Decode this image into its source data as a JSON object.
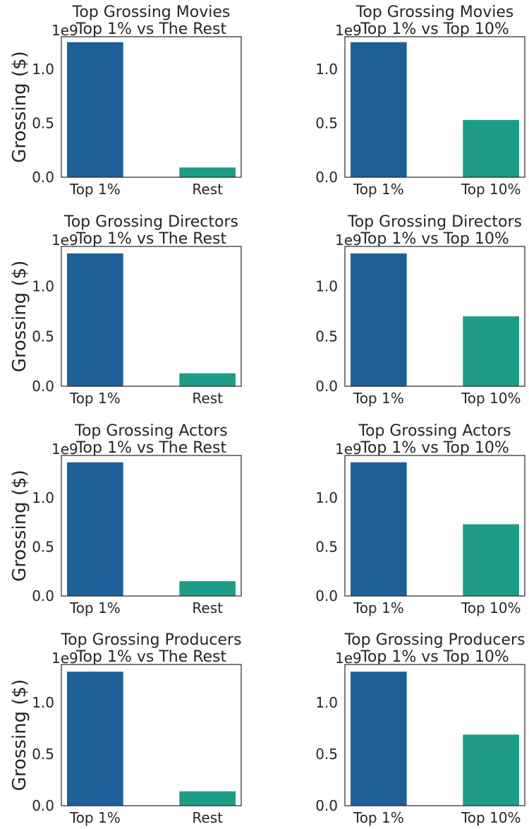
{
  "colors": {
    "top1": "#1f5f99",
    "other": "#1e9c87"
  },
  "ylabel": "Grossing ($)",
  "offset_label": "1e9",
  "chart_data": [
    {
      "type": "bar",
      "title": "Top Grossing Movies",
      "subtitle": "Top 1% vs The Rest",
      "categories": [
        "Top 1%",
        "Rest"
      ],
      "values": [
        1.25,
        0.09
      ],
      "ylim": [
        0,
        1.3
      ],
      "yticks": [
        "0.0",
        "0.5",
        "1.0"
      ],
      "grid": false,
      "scale": "1e9"
    },
    {
      "type": "bar",
      "title": "Top Grossing Movies",
      "subtitle": "Top 1% vs Top 10%",
      "categories": [
        "Top 1%",
        "Top 10%"
      ],
      "values": [
        1.25,
        0.53
      ],
      "ylim": [
        0,
        1.3
      ],
      "yticks": [
        "0.0",
        "0.5",
        "1.0"
      ],
      "grid": false,
      "scale": "1e9"
    },
    {
      "type": "bar",
      "title": "Top Grossing Directors",
      "subtitle": "Top 1% vs The Rest",
      "categories": [
        "Top 1%",
        "Rest"
      ],
      "values": [
        1.33,
        0.13
      ],
      "ylim": [
        0,
        1.4
      ],
      "yticks": [
        "0.0",
        "0.5",
        "1.0"
      ],
      "grid": false,
      "scale": "1e9"
    },
    {
      "type": "bar",
      "title": "Top Grossing Directors",
      "subtitle": "Top 1% vs Top 10%",
      "categories": [
        "Top 1%",
        "Top 10%"
      ],
      "values": [
        1.33,
        0.7
      ],
      "ylim": [
        0,
        1.4
      ],
      "yticks": [
        "0.0",
        "0.5",
        "1.0"
      ],
      "grid": false,
      "scale": "1e9"
    },
    {
      "type": "bar",
      "title": "Top Grossing Actors",
      "subtitle": "Top 1% vs The Rest",
      "categories": [
        "Top 1%",
        "Rest"
      ],
      "values": [
        1.36,
        0.15
      ],
      "ylim": [
        0,
        1.43
      ],
      "yticks": [
        "0.0",
        "0.5",
        "1.0"
      ],
      "grid": false,
      "scale": "1e9"
    },
    {
      "type": "bar",
      "title": "Top Grossing Actors",
      "subtitle": "Top 1% vs Top 10%",
      "categories": [
        "Top 1%",
        "Top 10%"
      ],
      "values": [
        1.36,
        0.73
      ],
      "ylim": [
        0,
        1.43
      ],
      "yticks": [
        "0.0",
        "0.5",
        "1.0"
      ],
      "grid": false,
      "scale": "1e9"
    },
    {
      "type": "bar",
      "title": "Top Grossing Producers",
      "subtitle": "Top 1% vs The Rest",
      "categories": [
        "Top 1%",
        "Rest"
      ],
      "values": [
        1.3,
        0.14
      ],
      "ylim": [
        0,
        1.37
      ],
      "yticks": [
        "0.0",
        "0.5",
        "1.0"
      ],
      "grid": false,
      "scale": "1e9"
    },
    {
      "type": "bar",
      "title": "Top Grossing Producers",
      "subtitle": "Top 1% vs Top 10%",
      "categories": [
        "Top 1%",
        "Top 10%"
      ],
      "values": [
        1.3,
        0.69
      ],
      "ylim": [
        0,
        1.37
      ],
      "yticks": [
        "0.0",
        "0.5",
        "1.0"
      ],
      "grid": false,
      "scale": "1e9"
    }
  ]
}
